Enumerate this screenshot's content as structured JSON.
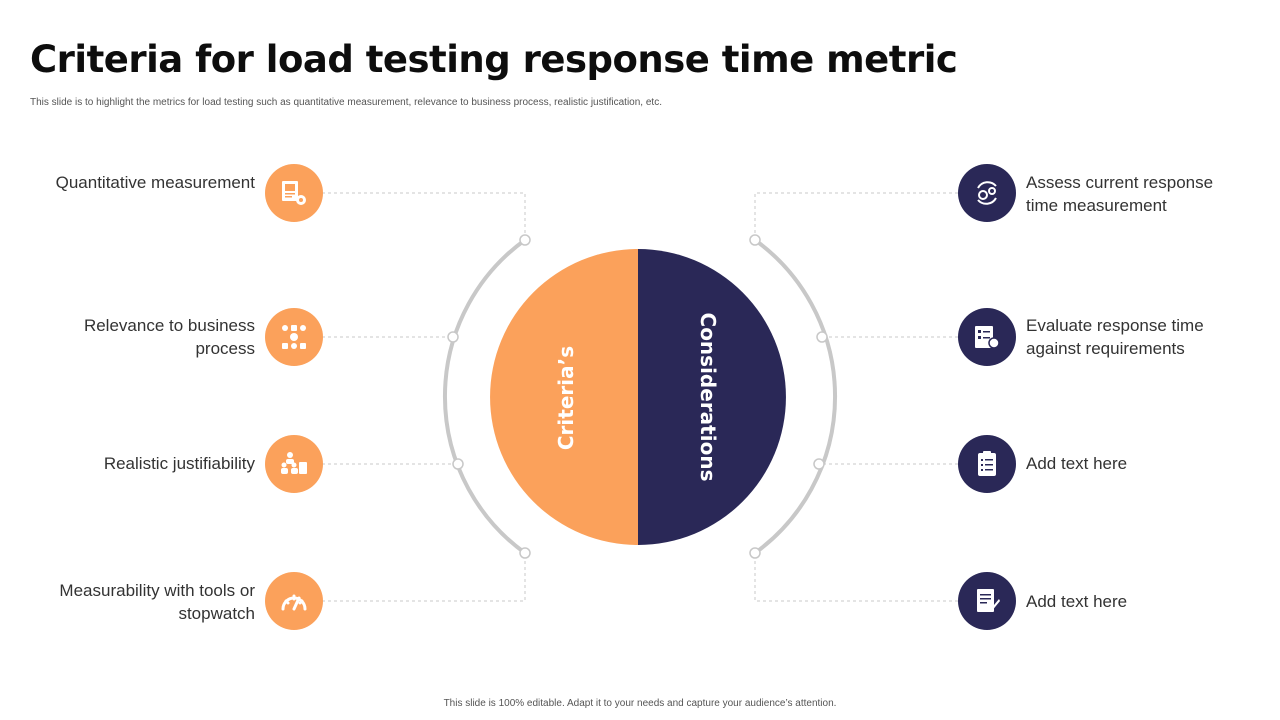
{
  "title": "Criteria for load testing response time metric",
  "subtitle": "This slide is to highlight the metrics for load testing such as quantitative measurement, relevance to business process, realistic justification, etc.",
  "footer": "This slide is 100% editable. Adapt it to your needs and capture your audience’s attention.",
  "colors": {
    "orange": "#fba15b",
    "navy": "#2a2857",
    "arc": "#c8c8c8"
  },
  "center": {
    "left_label": "Criteria’s",
    "right_label": "Considerations"
  },
  "left_items": [
    {
      "label": "Quantitative measurement",
      "icon": "report-gear-icon"
    },
    {
      "label": "Relevance to business process",
      "icon": "process-flow-icon"
    },
    {
      "label": "Realistic justifiability",
      "icon": "team-presentation-icon"
    },
    {
      "label": "Measurability with tools or stopwatch",
      "icon": "gauge-icon"
    }
  ],
  "right_items": [
    {
      "label": "Assess current response time measurement",
      "icon": "cycle-gears-icon"
    },
    {
      "label": "Evaluate response time against requirements",
      "icon": "checklist-search-icon"
    },
    {
      "label": "Add text here",
      "icon": "clipboard-icon"
    },
    {
      "label": "Add text here",
      "icon": "document-sign-icon"
    }
  ]
}
